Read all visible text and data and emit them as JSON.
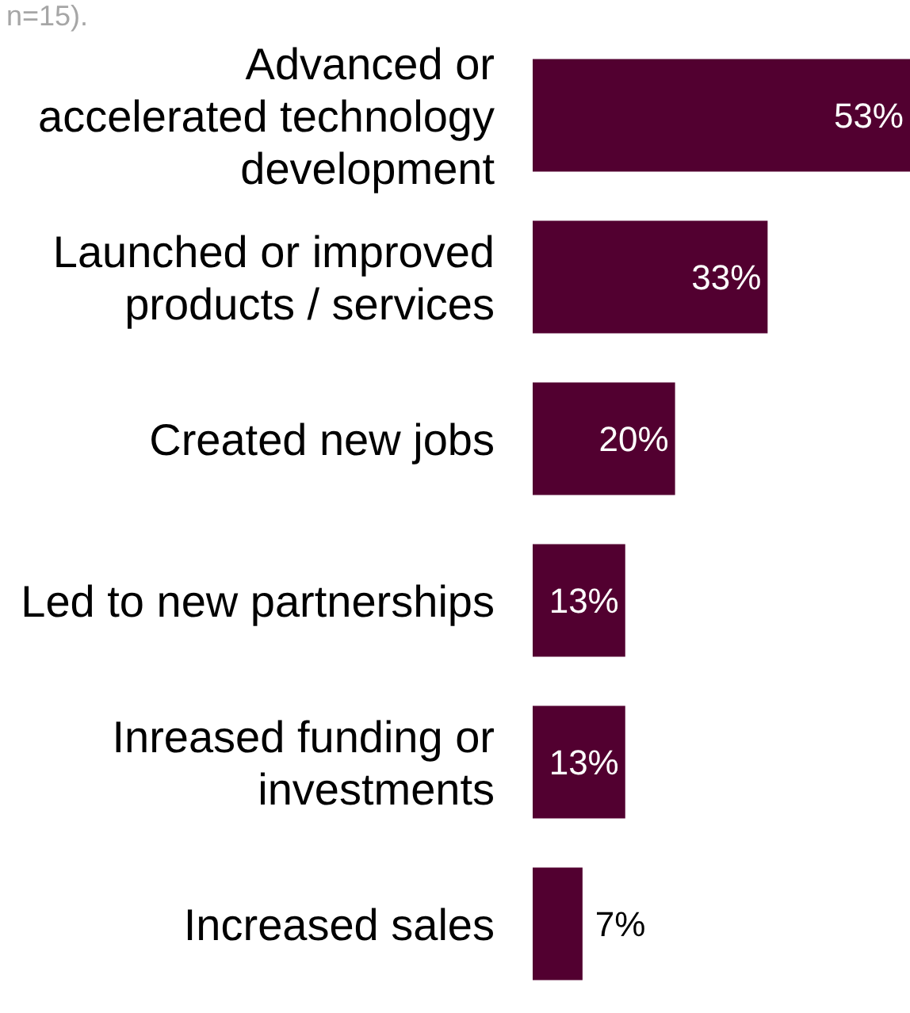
{
  "chart_data": {
    "type": "bar",
    "orientation": "horizontal",
    "annotations": [
      "n=15)."
    ],
    "categories": [
      "Advanced or accelerated technology development",
      "Launched or improved products / services",
      "Created new jobs",
      "Led to new partnerships",
      "Inreased funding or investments",
      "Increased sales"
    ],
    "values": [
      53,
      33,
      20,
      13,
      13,
      7
    ],
    "value_labels": [
      "53%",
      "33%",
      "20%",
      "13%",
      "13%",
      "7%"
    ],
    "color": "#520030"
  }
}
